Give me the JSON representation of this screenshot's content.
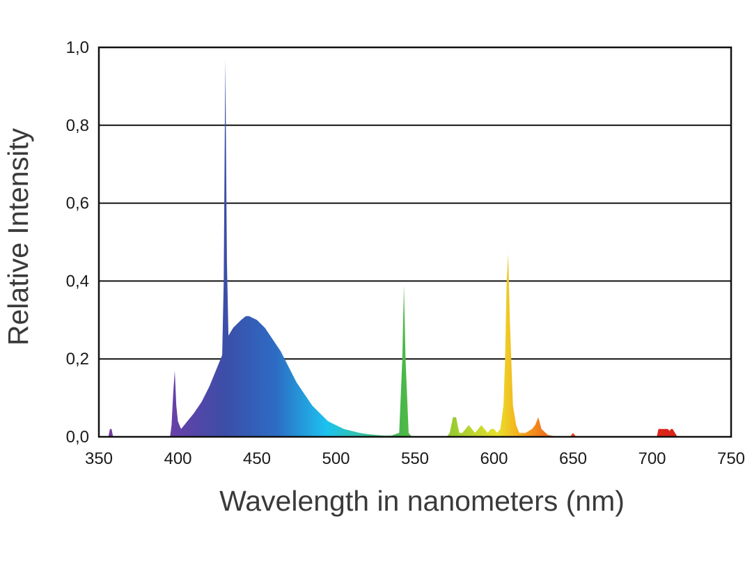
{
  "chart_data": {
    "type": "area",
    "title": "",
    "xlabel": "Wavelength in nanometers (nm)",
    "ylabel": "Relative  Intensity",
    "xlim": [
      350,
      750
    ],
    "ylim": [
      0,
      1.0
    ],
    "x_ticks": [
      350,
      400,
      450,
      500,
      550,
      600,
      650,
      700,
      750
    ],
    "x_tick_labels": [
      "350",
      "400",
      "450",
      "500",
      "550",
      "600",
      "650",
      "700",
      "750"
    ],
    "y_ticks": [
      0,
      0.2,
      0.4,
      0.6,
      0.8,
      1.0
    ],
    "y_tick_labels": [
      "0,0",
      "0,2",
      "0,4",
      "0,6",
      "0,8",
      "1,0"
    ],
    "grid": "horizontal",
    "legend": "none",
    "fill": "spectral gradient (violet to red)",
    "series": [
      {
        "x": [
          350,
          356,
          357,
          358,
          359,
          360,
          395,
          396,
          397,
          398,
          399,
          400,
          402,
          404,
          406,
          410,
          415,
          420,
          425,
          428,
          429,
          430,
          431,
          432,
          435,
          440,
          443,
          445,
          450,
          455,
          460,
          465,
          470,
          475,
          480,
          485,
          490,
          495,
          500,
          505,
          510,
          515,
          520,
          525,
          530,
          535,
          540,
          542,
          543,
          544,
          546,
          548,
          560,
          570,
          572,
          574,
          576,
          578,
          580,
          582,
          584,
          586,
          588,
          590,
          592,
          594,
          596,
          598,
          600,
          602,
          604,
          606,
          607,
          608,
          609,
          610,
          612,
          614,
          616,
          620,
          624,
          626,
          628,
          630,
          634,
          640,
          648,
          650,
          652,
          660,
          700,
          703,
          704,
          708,
          710,
          711,
          712,
          713,
          716,
          750
        ],
        "y": [
          0,
          0,
          0.02,
          0.02,
          0,
          0,
          0,
          0.03,
          0.11,
          0.17,
          0.08,
          0.04,
          0.02,
          0.03,
          0.04,
          0.06,
          0.09,
          0.13,
          0.18,
          0.21,
          0.4,
          0.97,
          0.45,
          0.26,
          0.28,
          0.3,
          0.31,
          0.31,
          0.3,
          0.28,
          0.25,
          0.22,
          0.18,
          0.14,
          0.11,
          0.08,
          0.06,
          0.04,
          0.03,
          0.02,
          0.015,
          0.01,
          0.007,
          0.005,
          0.003,
          0.003,
          0.01,
          0.2,
          0.39,
          0.2,
          0.01,
          0,
          0,
          0,
          0.01,
          0.05,
          0.05,
          0.01,
          0.01,
          0.02,
          0.03,
          0.02,
          0.01,
          0.02,
          0.03,
          0.02,
          0.01,
          0.02,
          0.02,
          0.01,
          0.02,
          0.08,
          0.2,
          0.4,
          0.47,
          0.3,
          0.08,
          0.03,
          0.01,
          0.01,
          0.02,
          0.03,
          0.05,
          0.02,
          0.005,
          0,
          0,
          0.01,
          0,
          0,
          0,
          0,
          0.02,
          0.02,
          0.02,
          0.015,
          0.02,
          0.02,
          0,
          0
        ]
      }
    ]
  }
}
